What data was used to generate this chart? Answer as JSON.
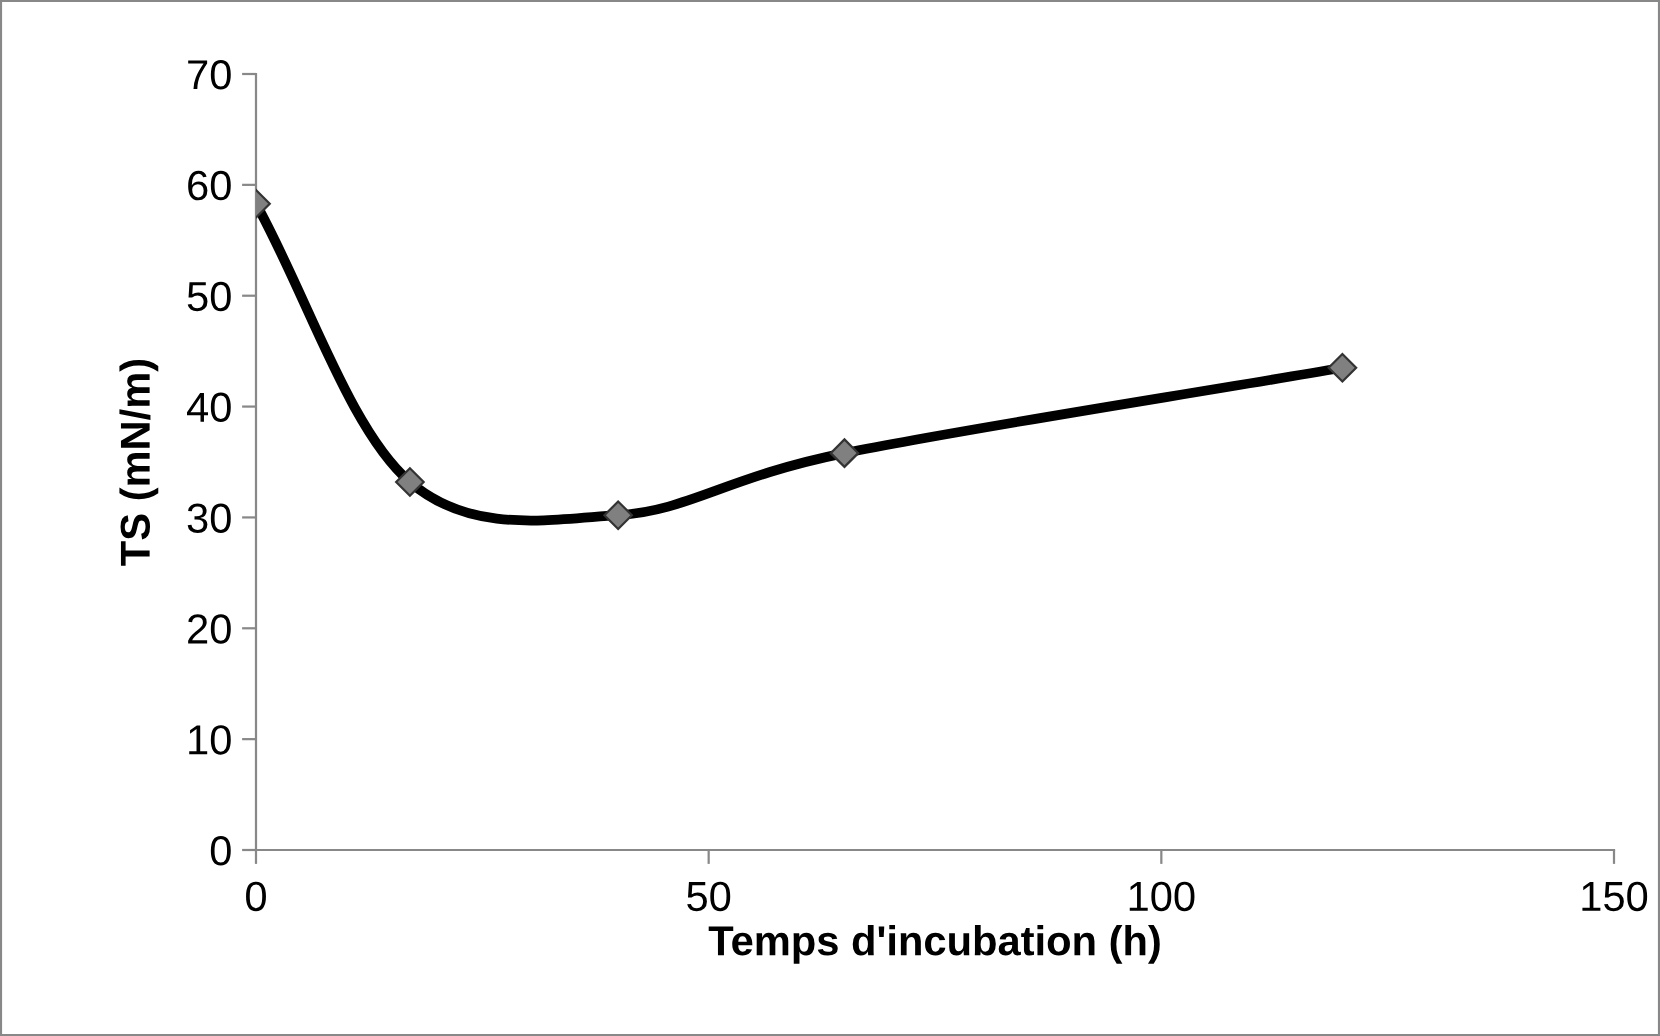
{
  "chart_data": {
    "type": "line",
    "xlabel": "Temps d'incubation (h)",
    "ylabel": "TS (mN/m)",
    "x": [
      0,
      17,
      40,
      65,
      120
    ],
    "series": [
      {
        "color": "#000000",
        "values": [
          58.3,
          33.2,
          30.2,
          35.8,
          43.5
        ]
      }
    ],
    "marker": "diamond",
    "line_style": "solid",
    "grid": false,
    "xlim": [
      0,
      150
    ],
    "ylim": [
      0,
      70
    ],
    "xticks": [
      0,
      50,
      100,
      150
    ],
    "yticks": [
      0,
      10,
      20,
      30,
      40,
      50,
      60,
      70
    ]
  }
}
